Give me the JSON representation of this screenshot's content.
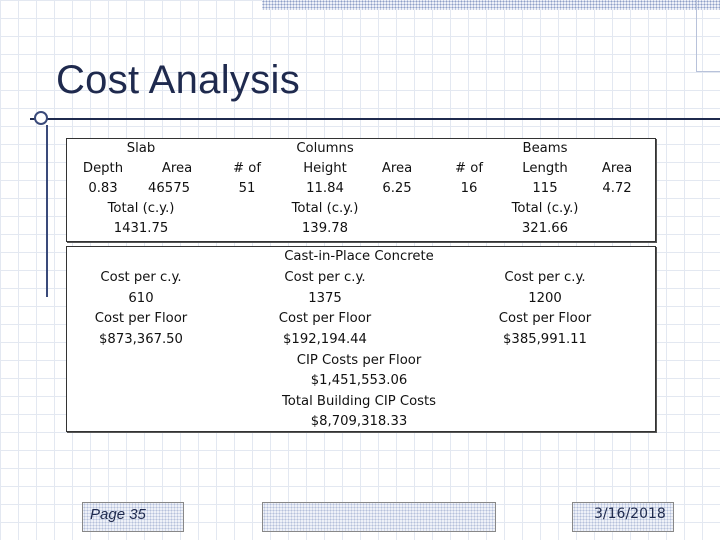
{
  "title": "Cost Analysis",
  "slab": {
    "heading": "Slab",
    "depth_label": "Depth",
    "area_label": "Area",
    "depth": "0.83",
    "area": "46575",
    "total_label": "Total (c.y.)",
    "total": "1431.75"
  },
  "columns": {
    "count_label": "# of",
    "count": "51",
    "heading": "Columns",
    "height_label": "Height",
    "height": "11.84",
    "area_label": "Area",
    "area": "6.25",
    "total_label": "Total (c.y.)",
    "total": "139.78"
  },
  "beams": {
    "count_label": "# of",
    "count": "16",
    "heading": "Beams",
    "length_label": "Length",
    "length": "115",
    "area_label": "Area",
    "area": "4.72",
    "total_label": "Total (c.y.)",
    "total": "321.66"
  },
  "costs": {
    "heading": "Cast-in-Place Concrete",
    "slab": {
      "cost_cy_label": "Cost per c.y.",
      "cost_cy": "610",
      "cost_floor_label": "Cost per Floor",
      "cost_floor": "$873,367.50"
    },
    "columns": {
      "cost_cy_label": "Cost per c.y.",
      "cost_cy": "1375",
      "cost_floor_label": "Cost per Floor",
      "cost_floor": "$192,194.44"
    },
    "beams": {
      "cost_cy_label": "Cost per c.y.",
      "cost_cy": "1200",
      "cost_floor_label": "Cost per Floor",
      "cost_floor": "$385,991.11"
    },
    "cip_floor_label": "CIP Costs per Floor",
    "cip_floor": "$1,451,553.06",
    "building_label": "Total Building CIP Costs",
    "building": "$8,709,318.33"
  },
  "footer": {
    "page": "Page 35",
    "date": "3/16/2018"
  }
}
